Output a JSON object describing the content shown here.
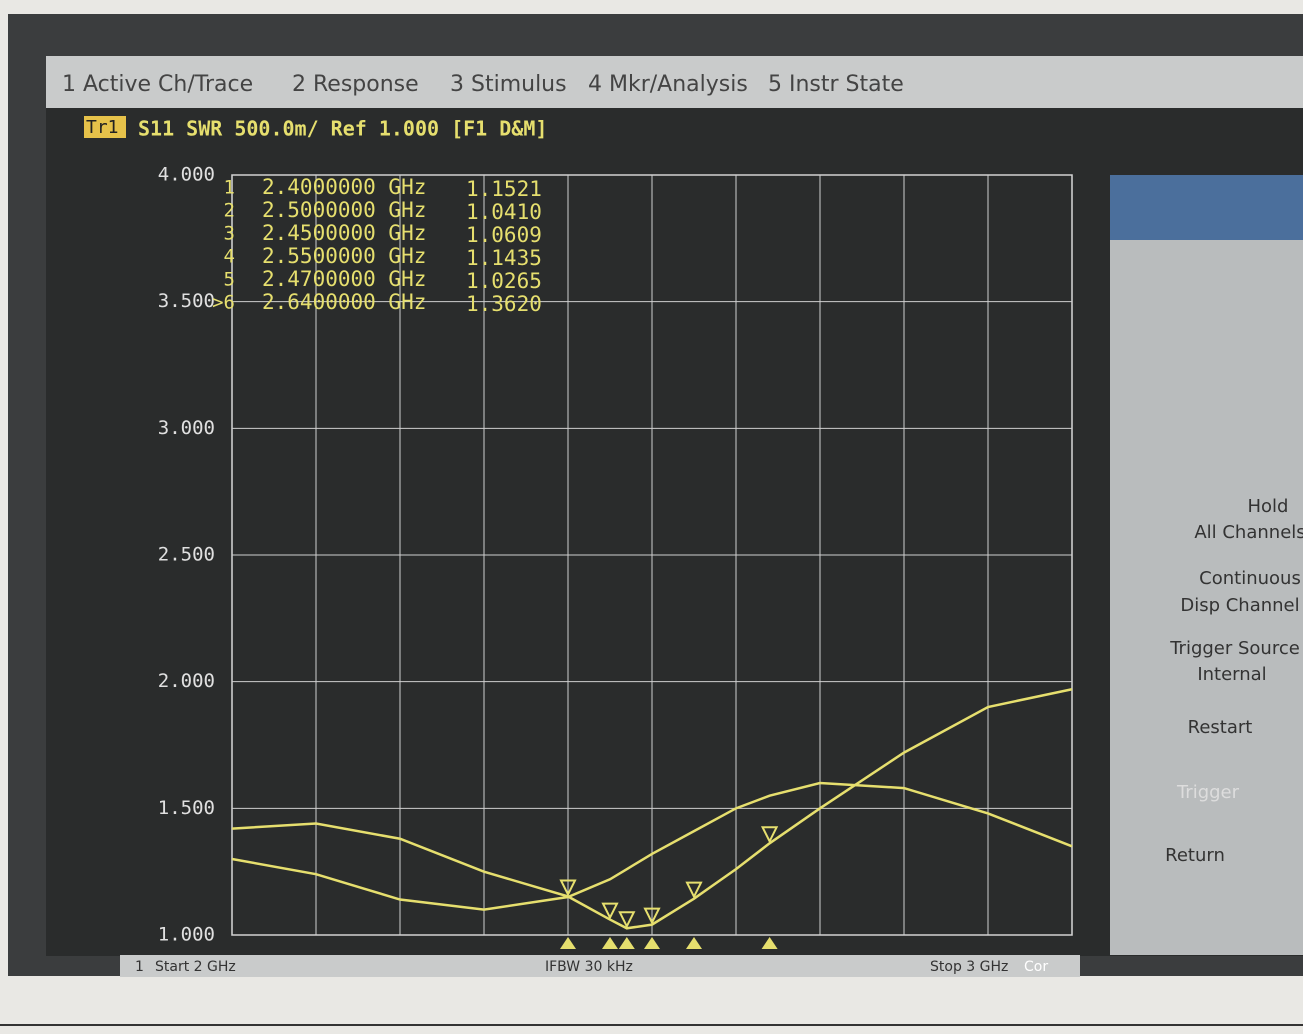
{
  "menu": [
    "1 Active Ch/Trace",
    "2 Response",
    "3 Stimulus",
    "4 Mkr/Analysis",
    "5 Instr State"
  ],
  "trace_header": {
    "trace": "Tr1",
    "text": "S11  SWR  500.0m/  Ref 1.000  [F1 D&M]"
  },
  "softkeys": [
    "Hold",
    "All Channels",
    "Continuous",
    "Disp Channel",
    "Trigger Source",
    "Internal",
    "Restart",
    "Trigger",
    "Return"
  ],
  "footer": {
    "channel": "1",
    "start": "Start 2 GHz",
    "ifbw": "IFBW 30 kHz",
    "stop": "Stop 3 GHz",
    "cor": "Cor"
  },
  "chart_data": {
    "type": "line",
    "x": [
      2.0,
      2.1,
      2.2,
      2.3,
      2.4,
      2.45,
      2.47,
      2.5,
      2.55,
      2.6,
      2.64,
      2.7,
      2.8,
      2.9,
      3.0
    ],
    "series": [
      {
        "color": "#e6df6e",
        "values": [
          1.42,
          1.44,
          1.38,
          1.25,
          1.1521,
          1.0609,
          1.0265,
          1.041,
          1.1435,
          1.26,
          1.362,
          1.5,
          1.72,
          1.9,
          1.97
        ]
      },
      {
        "color": "#e6df6e",
        "values": [
          1.3,
          1.24,
          1.14,
          1.1,
          1.15,
          1.22,
          1.26,
          1.32,
          1.41,
          1.5,
          1.55,
          1.6,
          1.58,
          1.48,
          1.35
        ]
      }
    ],
    "xlim": [
      2,
      3
    ],
    "ylim": [
      1,
      4
    ],
    "yticks": [
      {
        "value": 4,
        "label": "4.000"
      },
      {
        "value": 3.5,
        "label": "3.500"
      },
      {
        "value": 3,
        "label": "3.000"
      },
      {
        "value": 2.5,
        "label": "2.500"
      },
      {
        "value": 2,
        "label": "2.000"
      },
      {
        "value": 1.5,
        "label": "1.500"
      },
      {
        "value": 1,
        "label": "1.000"
      }
    ],
    "grid": true,
    "markers": [
      {
        "name": "1",
        "x": 2.4,
        "x_label": "2.4000000 GHz",
        "value": 1.1521,
        "value_label": "1.1521"
      },
      {
        "name": "2",
        "x": 2.5,
        "x_label": "2.5000000 GHz",
        "value": 1.041,
        "value_label": "1.0410"
      },
      {
        "name": "3",
        "x": 2.45,
        "x_label": "2.4500000 GHz",
        "value": 1.0609,
        "value_label": "1.0609"
      },
      {
        "name": "4",
        "x": 2.55,
        "x_label": "2.5500000 GHz",
        "value": 1.1435,
        "value_label": "1.1435"
      },
      {
        "name": "5",
        "x": 2.47,
        "x_label": "2.4700000 GHz",
        "value": 1.0265,
        "value_label": "1.0265"
      },
      {
        "name": ">6",
        "x": 2.64,
        "x_label": "2.6400000 GHz",
        "value": 1.362,
        "value_label": "1.3620"
      }
    ]
  }
}
